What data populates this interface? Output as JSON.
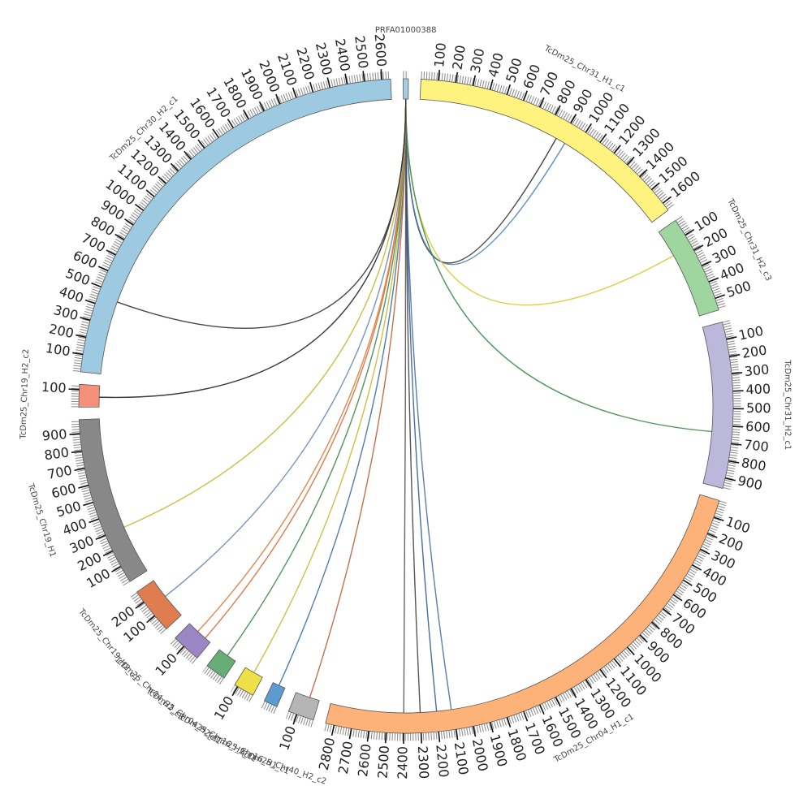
{
  "chart_data": {
    "type": "chord",
    "segments": [
      {
        "name": "PRFA01000388",
        "length": 30,
        "color": "#a6cde3",
        "ticks": []
      },
      {
        "name": "TcDm25_Chr31_H1_c1",
        "length": 1650,
        "color": "#fff37f",
        "ticks": [
          100,
          200,
          300,
          400,
          500,
          600,
          700,
          800,
          900,
          1000,
          1100,
          1200,
          1300,
          1400,
          1500,
          1600
        ]
      },
      {
        "name": "TcDm25_Chr31_H2_c3",
        "length": 570,
        "color": "#9fd6a0",
        "ticks": [
          100,
          200,
          300,
          400,
          500
        ]
      },
      {
        "name": "TcDm25_Chr31_H2_c1",
        "length": 960,
        "color": "#bcb8db",
        "ticks": [
          100,
          200,
          300,
          400,
          500,
          600,
          700,
          800,
          900
        ]
      },
      {
        "name": "TcDm25_Chr04_H1_c1",
        "length": 2850,
        "color": "#fdb27a",
        "ticks": [
          100,
          200,
          300,
          400,
          500,
          600,
          700,
          800,
          900,
          1000,
          1100,
          1200,
          1300,
          1400,
          1500,
          1600,
          1700,
          1800,
          1900,
          2000,
          2100,
          2200,
          2300,
          2400,
          2500,
          2600,
          2700,
          2800
        ]
      },
      {
        "name": "TcDm25_Chr40_H2_c2",
        "length": 150,
        "color": "#b5b5b5",
        "ticks": [
          100
        ]
      },
      {
        "name": "TcDm25_Chr16_H1_c1",
        "length": 80,
        "color": "#5b9bd0",
        "ticks": []
      },
      {
        "name": "TcDm25_Chr16_H2_c1",
        "length": 120,
        "color": "#ede147",
        "ticks": [
          100
        ]
      },
      {
        "name": "TcDm25_Chr04_H2_c1",
        "length": 120,
        "color": "#66ad77",
        "ticks": []
      },
      {
        "name": "TcDm25_Chr04_H2_c3",
        "length": 170,
        "color": "#9b86c4",
        "ticks": [
          100
        ]
      },
      {
        "name": "TcDm25_Chr19_H2_c1",
        "length": 270,
        "color": "#e07d4f",
        "ticks": [
          100,
          200
        ]
      },
      {
        "name": "TcDm25_Chr19_H1",
        "length": 980,
        "color": "#888888",
        "ticks": [
          100,
          200,
          300,
          400,
          500,
          600,
          700,
          800,
          900
        ]
      },
      {
        "name": "TcDm25_Chr19_H2_c2",
        "length": 130,
        "color": "#f7907a",
        "ticks": [
          100
        ]
      },
      {
        "name": "TcDm25_Chr30_H2_c1",
        "length": 2650,
        "color": "#9ecae1",
        "ticks": [
          100,
          200,
          300,
          400,
          500,
          600,
          700,
          800,
          900,
          1000,
          1100,
          1200,
          1300,
          1400,
          1500,
          1600,
          1700,
          1800,
          1900,
          2000,
          2100,
          2200,
          2300,
          2400,
          2500,
          2600
        ]
      }
    ],
    "links": [
      {
        "source": "PRFA01000388",
        "source_pos": 15,
        "target": "TcDm25_Chr31_H1_c1",
        "target_pos": 870,
        "color": "#333333"
      },
      {
        "source": "PRFA01000388",
        "source_pos": 15,
        "target": "TcDm25_Chr31_H1_c1",
        "target_pos": 930,
        "color": "#4a7fb5"
      },
      {
        "source": "PRFA01000388",
        "source_pos": 15,
        "target": "TcDm25_Chr31_H2_c3",
        "target_pos": 170,
        "color": "#d9c92e"
      },
      {
        "source": "PRFA01000388",
        "source_pos": 15,
        "target": "TcDm25_Chr31_H2_c1",
        "target_pos": 640,
        "color": "#3f8a4a"
      },
      {
        "source": "PRFA01000388",
        "source_pos": 15,
        "target": "TcDm25_Chr04_H1_c1",
        "target_pos": 2110,
        "color": "#4a6fa8"
      },
      {
        "source": "PRFA01000388",
        "source_pos": 15,
        "target": "TcDm25_Chr04_H1_c1",
        "target_pos": 2200,
        "color": "#2e5fa0"
      },
      {
        "source": "PRFA01000388",
        "source_pos": 15,
        "target": "TcDm25_Chr04_H1_c1",
        "target_pos": 2300,
        "color": "#444444"
      },
      {
        "source": "PRFA01000388",
        "source_pos": 15,
        "target": "TcDm25_Chr04_H1_c1",
        "target_pos": 2400,
        "color": "#555555"
      },
      {
        "source": "PRFA01000388",
        "source_pos": 15,
        "target": "TcDm25_Chr40_H2_c2",
        "target_pos": 60,
        "color": "#c0603a"
      },
      {
        "source": "PRFA01000388",
        "source_pos": 15,
        "target": "TcDm25_Chr16_H1_c1",
        "target_pos": 40,
        "color": "#3a6fb0"
      },
      {
        "source": "PRFA01000388",
        "source_pos": 15,
        "target": "TcDm25_Chr16_H2_c1",
        "target_pos": 60,
        "color": "#c9b830"
      },
      {
        "source": "PRFA01000388",
        "source_pos": 15,
        "target": "TcDm25_Chr04_H2_c1",
        "target_pos": 60,
        "color": "#3f8a4a"
      },
      {
        "source": "PRFA01000388",
        "source_pos": 15,
        "target": "TcDm25_Chr04_H2_c3",
        "target_pos": 40,
        "color": "#d96b3a"
      },
      {
        "source": "PRFA01000388",
        "source_pos": 15,
        "target": "TcDm25_Chr04_H2_c3",
        "target_pos": 100,
        "color": "#e07a3a"
      },
      {
        "source": "PRFA01000388",
        "source_pos": 15,
        "target": "TcDm25_Chr19_H2_c1",
        "target_pos": 150,
        "color": "#6a8ab8"
      },
      {
        "source": "PRFA01000388",
        "source_pos": 15,
        "target": "TcDm25_Chr19_H1",
        "target_pos": 300,
        "color": "#c9b830"
      },
      {
        "source": "PRFA01000388",
        "source_pos": 15,
        "target": "TcDm25_Chr19_H2_c2",
        "target_pos": 60,
        "color": "#222222"
      },
      {
        "source": "PRFA01000388",
        "source_pos": 15,
        "target": "TcDm25_Chr30_H2_c1",
        "target_pos": 450,
        "color": "#333333"
      }
    ]
  }
}
